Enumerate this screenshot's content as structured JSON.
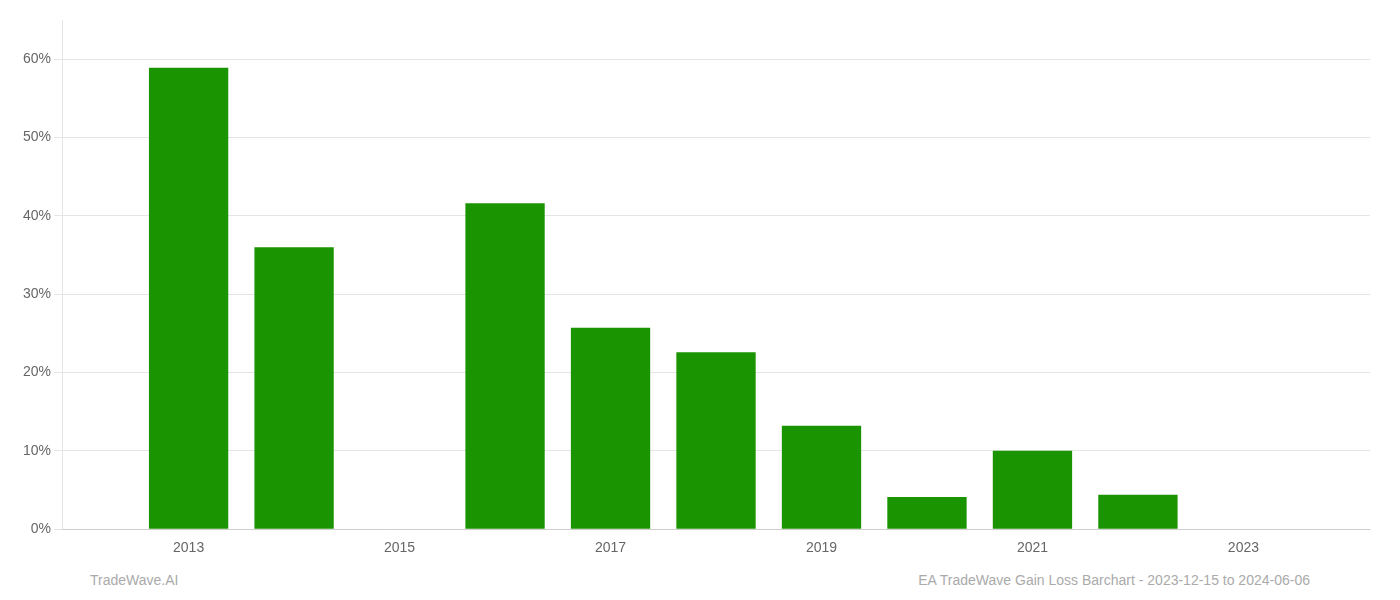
{
  "chart_data": {
    "type": "bar",
    "x": [
      2013,
      2014,
      2016,
      2017,
      2018,
      2019,
      2020,
      2021,
      2022
    ],
    "values": [
      0.589,
      0.36,
      0.416,
      0.257,
      0.226,
      0.132,
      0.041,
      0.1,
      0.044
    ],
    "color": "#1a9400",
    "xlim": [
      2011.8,
      2024.2
    ],
    "xticks": [
      2013,
      2015,
      2017,
      2019,
      2021,
      2023
    ],
    "ylim": [
      0,
      0.65
    ],
    "yticks": [
      {
        "value": 0.0,
        "label": "0%"
      },
      {
        "value": 0.1,
        "label": "10%"
      },
      {
        "value": 0.2,
        "label": "20%"
      },
      {
        "value": 0.3,
        "label": "30%"
      },
      {
        "value": 0.4,
        "label": "40%"
      },
      {
        "value": 0.5,
        "label": "50%"
      },
      {
        "value": 0.6,
        "label": "60%"
      }
    ],
    "grid": true,
    "annotations": [
      "TradeWave.AI",
      "EA TradeWave Gain Loss Barchart - 2023-12-15 to 2024-06-06"
    ]
  }
}
